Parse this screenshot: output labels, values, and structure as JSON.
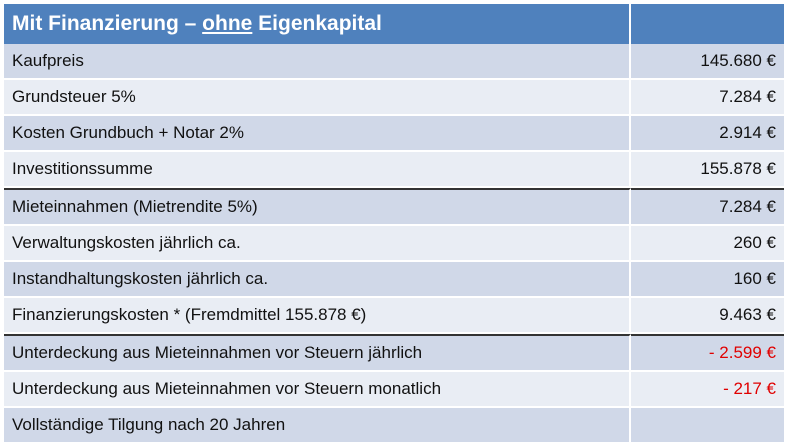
{
  "header": {
    "title_prefix": "Mit Finanzierung – ",
    "title_underlined": "ohne",
    "title_suffix": " Eigenkapital",
    "value": ""
  },
  "rows": [
    {
      "label": "Kaufpreis",
      "value": "145.680 €"
    },
    {
      "label": "Grundsteuer 5%",
      "value": "7.284 €"
    },
    {
      "label": "Kosten Grundbuch + Notar 2%",
      "value": "2.914 €"
    },
    {
      "label": "Investitionssumme",
      "value": "155.878 €"
    },
    {
      "label": "Mieteinnahmen (Mietrendite 5%)",
      "value": "7.284 €"
    },
    {
      "label": "Verwaltungskosten jährlich ca.",
      "value": "260 €"
    },
    {
      "label": "Instandhaltungskosten jährlich ca.",
      "value": "160 €"
    },
    {
      "label": "Finanzierungskosten * (Fremdmittel 155.878 €)",
      "value": "9.463 €"
    },
    {
      "label": "Unterdeckung aus Mieteinnahmen vor Steuern jährlich",
      "value": "- 2.599 €"
    },
    {
      "label": "Unterdeckung aus Mieteinnahmen vor Steuern monatlich",
      "value": "- 217 €"
    },
    {
      "label": "Vollständige Tilgung nach 20 Jahren",
      "value": ""
    }
  ],
  "colors": {
    "header_bg": "#4f81bd",
    "row_odd": "#d0d8e8",
    "row_even": "#e9edf4",
    "negative": "#e00000"
  }
}
